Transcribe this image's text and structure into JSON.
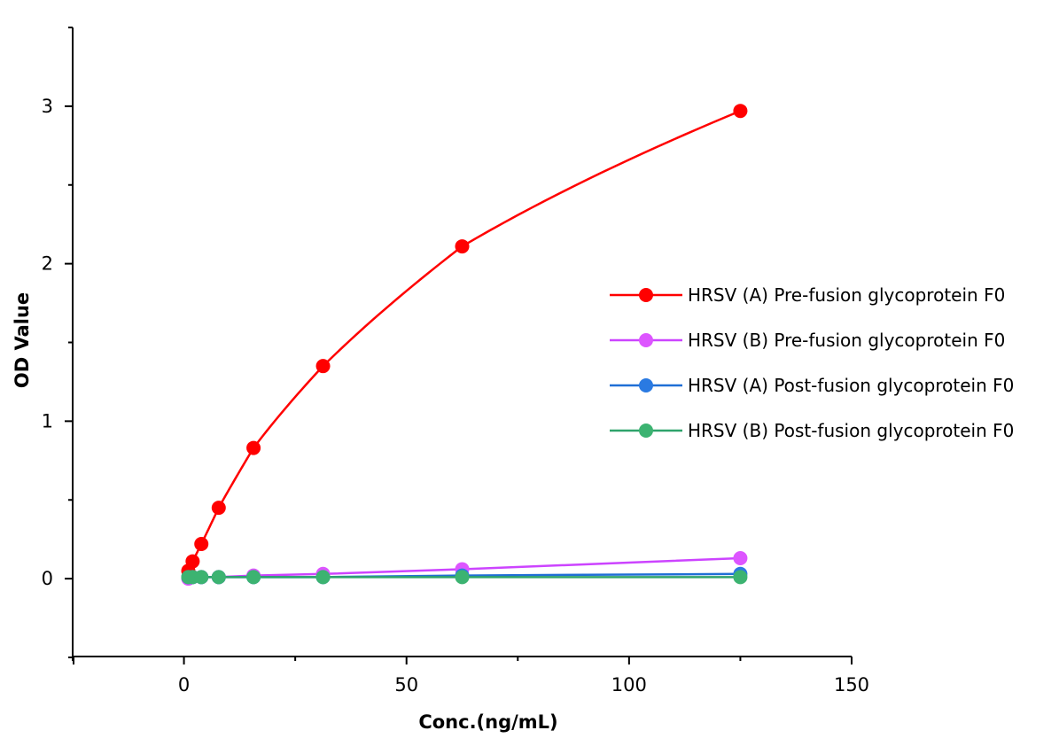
{
  "chart_data": {
    "type": "line",
    "xlabel": "Conc.(ng/mL)",
    "ylabel": "OD Value",
    "xlim": [
      -25,
      150
    ],
    "ylim": [
      -0.5,
      3.5
    ],
    "x_ticks": [
      "0",
      "50",
      "100",
      "150"
    ],
    "y_ticks": [
      "0",
      "1",
      "2",
      "3"
    ],
    "x_tick_values": [
      0,
      50,
      100,
      150
    ],
    "y_tick_values": [
      0,
      1,
      2,
      3
    ],
    "grid": false,
    "legend_position": "right",
    "x": [
      0.98,
      1.95,
      3.91,
      7.81,
      15.63,
      31.25,
      62.5,
      125
    ],
    "series": [
      {
        "name": "HRSV (A) Pre-fusion glycoprotein F0",
        "color": "#ff0000",
        "marker_color": "#ff0000",
        "values": [
          0.05,
          0.11,
          0.22,
          0.45,
          0.83,
          1.35,
          2.11,
          2.97
        ],
        "curve": "smooth"
      },
      {
        "name": "HRSV (B) Pre-fusion glycoprotein F0",
        "color": "#cc44ff",
        "marker_color": "#dd55ff",
        "values": [
          0.0,
          0.01,
          0.01,
          0.01,
          0.02,
          0.03,
          0.06,
          0.13
        ],
        "curve": "linear"
      },
      {
        "name": "HRSV (A) Post-fusion glycoprotein F0",
        "color": "#1f6fd6",
        "marker_color": "#2a7ae2",
        "values": [
          0.01,
          0.01,
          0.01,
          0.01,
          0.01,
          0.01,
          0.02,
          0.03
        ],
        "curve": "linear"
      },
      {
        "name": "HRSV (B) Post-fusion glycoprotein F0",
        "color": "#2fa36b",
        "marker_color": "#3cb371",
        "values": [
          0.01,
          0.01,
          0.01,
          0.01,
          0.01,
          0.01,
          0.01,
          0.01
        ],
        "curve": "linear"
      }
    ]
  }
}
